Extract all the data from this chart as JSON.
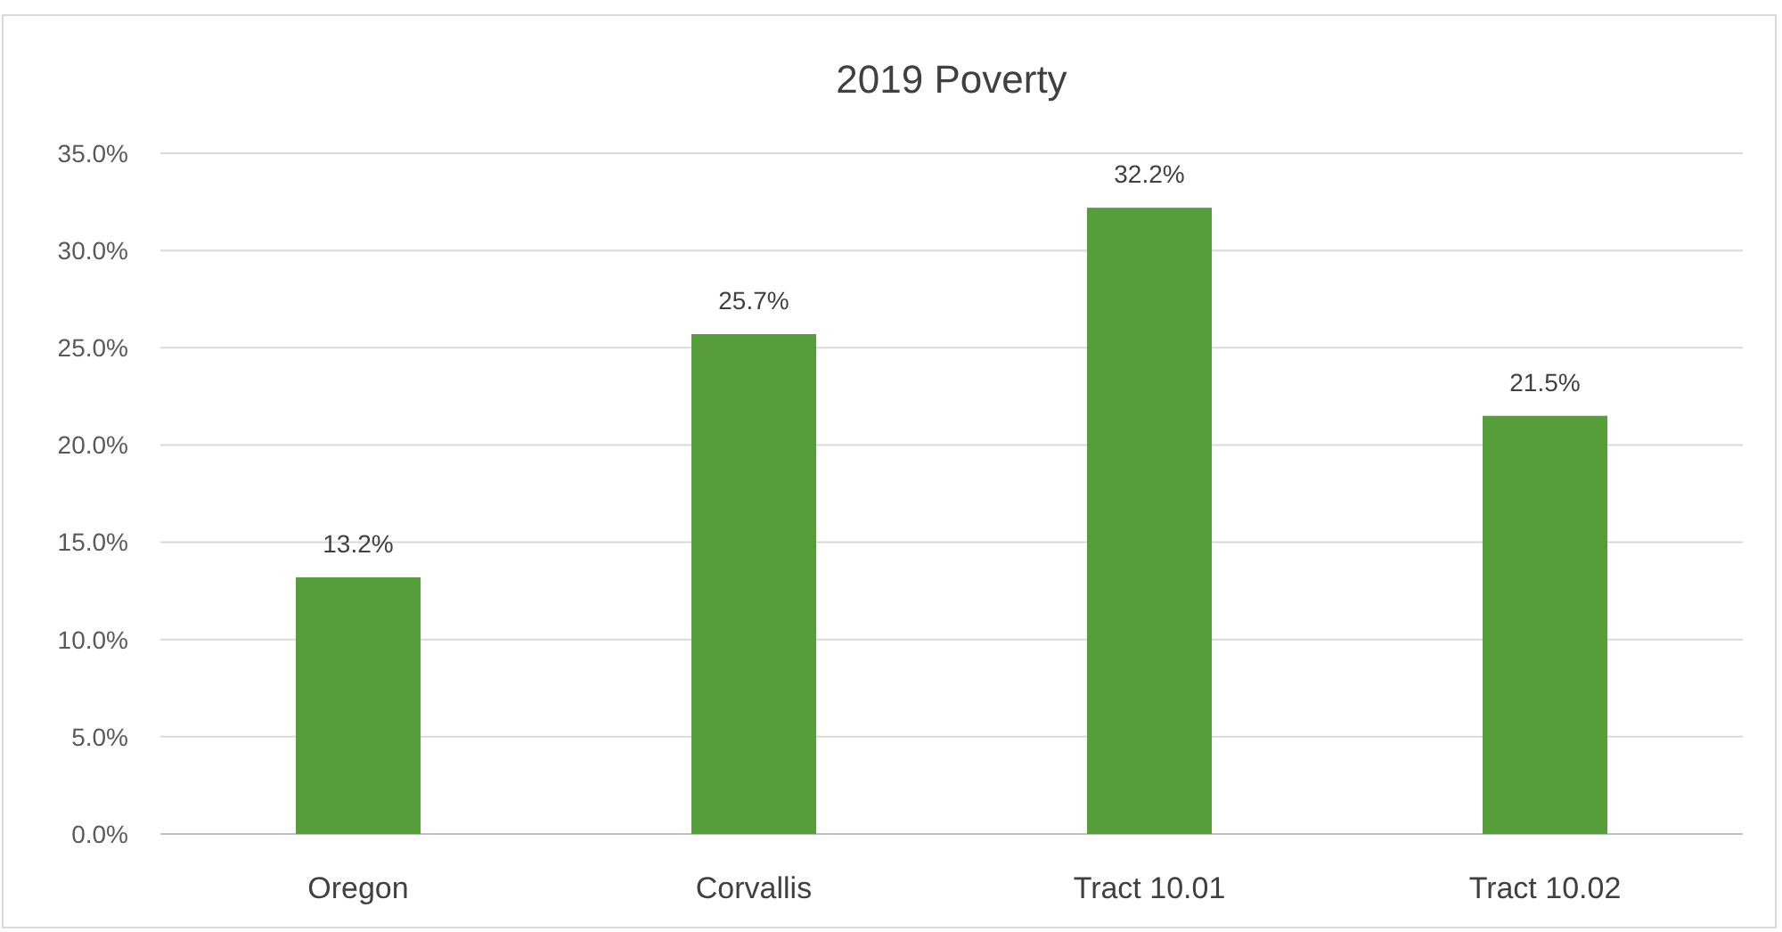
{
  "chart_data": {
    "type": "bar",
    "title": "2019 Poverty",
    "categories": [
      "Oregon",
      "Corvallis",
      "Tract 10.01",
      "Tract 10.02"
    ],
    "values": [
      13.2,
      25.7,
      32.2,
      21.5
    ],
    "value_labels": [
      "13.2%",
      "25.7%",
      "32.2%",
      "21.5%"
    ],
    "color": "#559e3a",
    "ylim": [
      0,
      35
    ],
    "yticks": [
      {
        "value": 0,
        "label": "0.0%"
      },
      {
        "value": 5,
        "label": "5.0%"
      },
      {
        "value": 10,
        "label": "10.0%"
      },
      {
        "value": 15,
        "label": "15.0%"
      },
      {
        "value": 20,
        "label": "20.0%"
      },
      {
        "value": 25,
        "label": "25.0%"
      },
      {
        "value": 30,
        "label": "30.0%"
      },
      {
        "value": 35,
        "label": "35.0%"
      }
    ],
    "grid": "y"
  }
}
